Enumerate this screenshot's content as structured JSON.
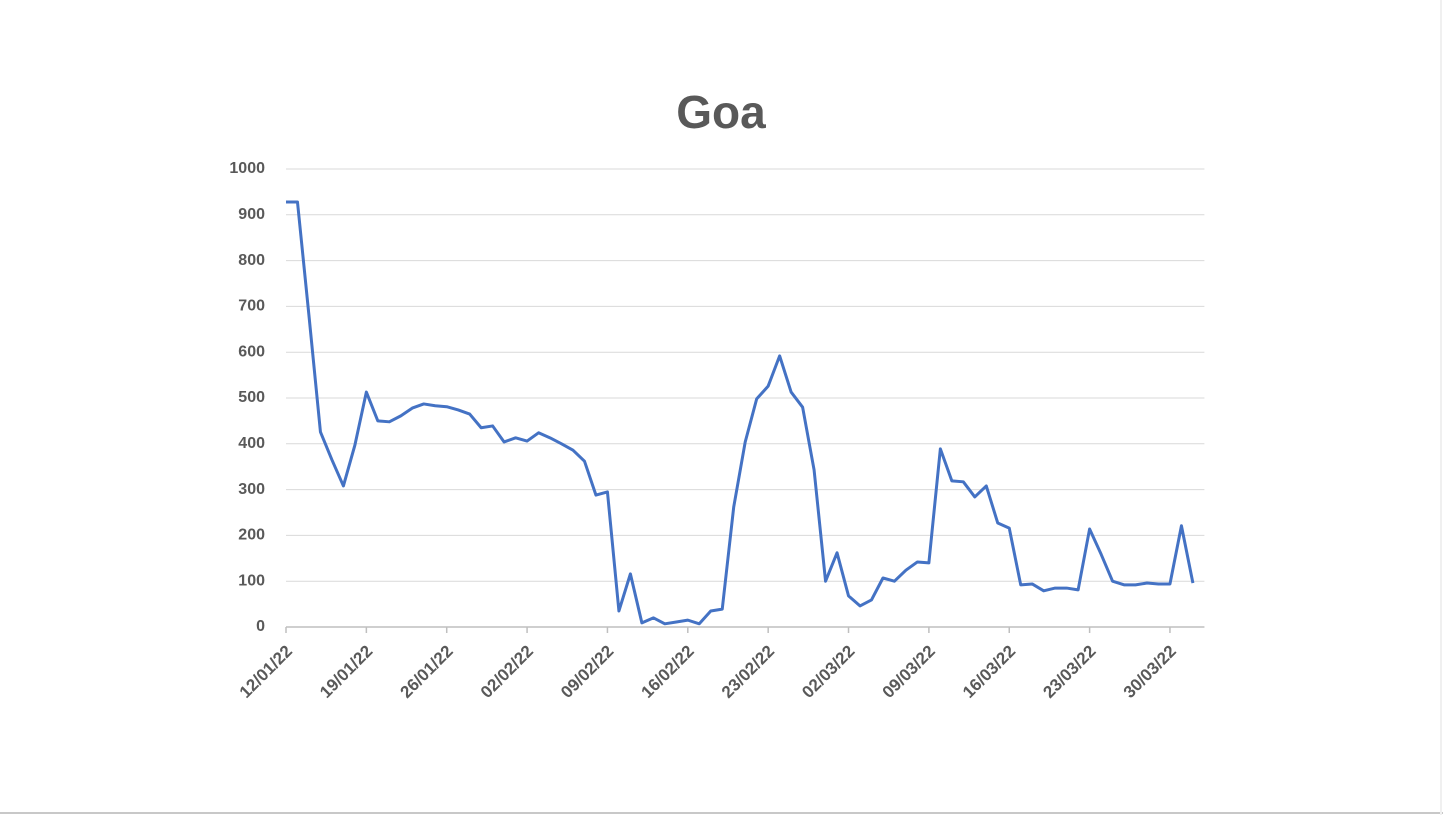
{
  "chart_data": {
    "type": "line",
    "title": "Goa",
    "x": [
      "12/01/22",
      "13/01/22",
      "14/01/22",
      "15/01/22",
      "16/01/22",
      "17/01/22",
      "18/01/22",
      "19/01/22",
      "20/01/22",
      "21/01/22",
      "22/01/22",
      "23/01/22",
      "24/01/22",
      "25/01/22",
      "26/01/22",
      "27/01/22",
      "28/01/22",
      "29/01/22",
      "30/01/22",
      "31/01/22",
      "01/02/22",
      "02/02/22",
      "03/02/22",
      "04/02/22",
      "05/02/22",
      "06/02/22",
      "07/02/22",
      "08/02/22",
      "09/02/22",
      "10/02/22",
      "11/02/22",
      "12/02/22",
      "13/02/22",
      "14/02/22",
      "15/02/22",
      "16/02/22",
      "17/02/22",
      "18/02/22",
      "19/02/22",
      "20/02/22",
      "21/02/22",
      "22/02/22",
      "23/02/22",
      "24/02/22",
      "25/02/22",
      "26/02/22",
      "27/02/22",
      "28/02/22",
      "01/03/22",
      "02/03/22",
      "03/03/22",
      "04/03/22",
      "05/03/22",
      "06/03/22",
      "07/03/22",
      "08/03/22",
      "09/03/22",
      "10/03/22",
      "11/03/22",
      "12/03/22",
      "13/03/22",
      "14/03/22",
      "15/03/22",
      "16/03/22",
      "17/03/22",
      "18/03/22",
      "19/03/22",
      "20/03/22",
      "21/03/22",
      "22/03/22",
      "23/03/22",
      "24/03/22",
      "25/03/22",
      "26/03/22",
      "27/03/22",
      "28/03/22",
      "29/03/22",
      "30/03/22",
      "31/03/22",
      "01/04/22"
    ],
    "series": [
      {
        "color": "#4472c4",
        "values": [
          928,
          928,
          680,
          426,
          365,
          308,
          397,
          513,
          450,
          448,
          461,
          478,
          487,
          483,
          481,
          474,
          465,
          435,
          439,
          404,
          413,
          406,
          424,
          413,
          400,
          386,
          362,
          288,
          295,
          35,
          116,
          9,
          20,
          7,
          11,
          15,
          7,
          35,
          39,
          262,
          404,
          498,
          526,
          592,
          513,
          480,
          343,
          100,
          162,
          68,
          46,
          59,
          107,
          100,
          124,
          142,
          140,
          389,
          319,
          317,
          284,
          308,
          227,
          216,
          92,
          94,
          79,
          85,
          85,
          81,
          214,
          159,
          100,
          92,
          92,
          96,
          94,
          94,
          221,
          96
        ]
      }
    ],
    "xlim": [
      "12/01/22",
      "02/04/22"
    ],
    "xticks": [
      "12/01/22",
      "19/01/22",
      "26/01/22",
      "02/02/22",
      "09/02/22",
      "16/02/22",
      "23/02/22",
      "02/03/22",
      "09/03/22",
      "16/03/22",
      "23/03/22",
      "30/03/22"
    ],
    "ylim": [
      0,
      1000
    ],
    "yticks": [
      0,
      100,
      200,
      300,
      400,
      500,
      600,
      700,
      800,
      900,
      1000
    ],
    "grid": true
  }
}
